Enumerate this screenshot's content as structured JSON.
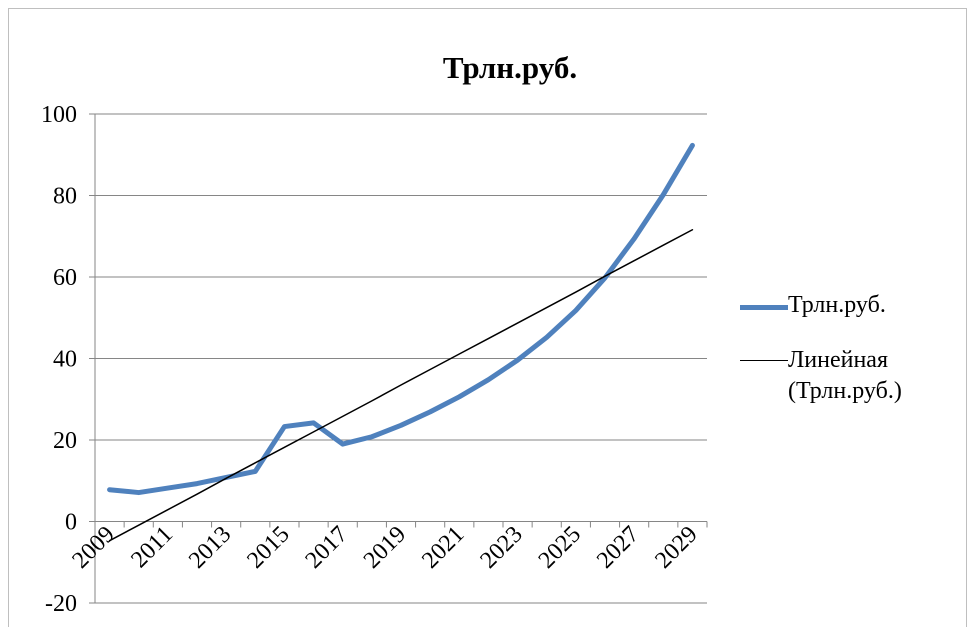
{
  "chart_data": {
    "type": "line",
    "title": "Трлн.руб.",
    "categories": [
      "2009",
      null,
      "2011",
      null,
      "2013",
      null,
      "2015",
      null,
      "2017",
      null,
      "2019",
      null,
      "2021",
      null,
      "2023",
      null,
      "2025",
      null,
      "2027",
      null,
      "2029"
    ],
    "series": [
      {
        "name": "Трлн.руб.",
        "color": "#4f81bd",
        "values": [
          7.8,
          7.1,
          8.2,
          9.3,
          10.8,
          12.3,
          23.3,
          24.2,
          19.0,
          20.8,
          23.6,
          26.9,
          30.6,
          34.8,
          39.6,
          45.2,
          51.8,
          59.8,
          69.4,
          80.2,
          92.3
        ]
      },
      {
        "name": "Линейная (Трлн.руб.)",
        "color": "#000000",
        "values": [
          -4.7,
          -0.9,
          2.9,
          6.7,
          10.6,
          14.4,
          18.2,
          22.0,
          25.8,
          29.6,
          33.5,
          37.3,
          41.1,
          44.9,
          48.7,
          52.5,
          56.3,
          60.2,
          64.0,
          67.8,
          71.6
        ]
      }
    ],
    "ylim": [
      -20,
      100
    ],
    "yticks": [
      -20,
      0,
      20,
      40,
      60,
      80,
      100
    ],
    "grid": true,
    "legend": "right"
  }
}
